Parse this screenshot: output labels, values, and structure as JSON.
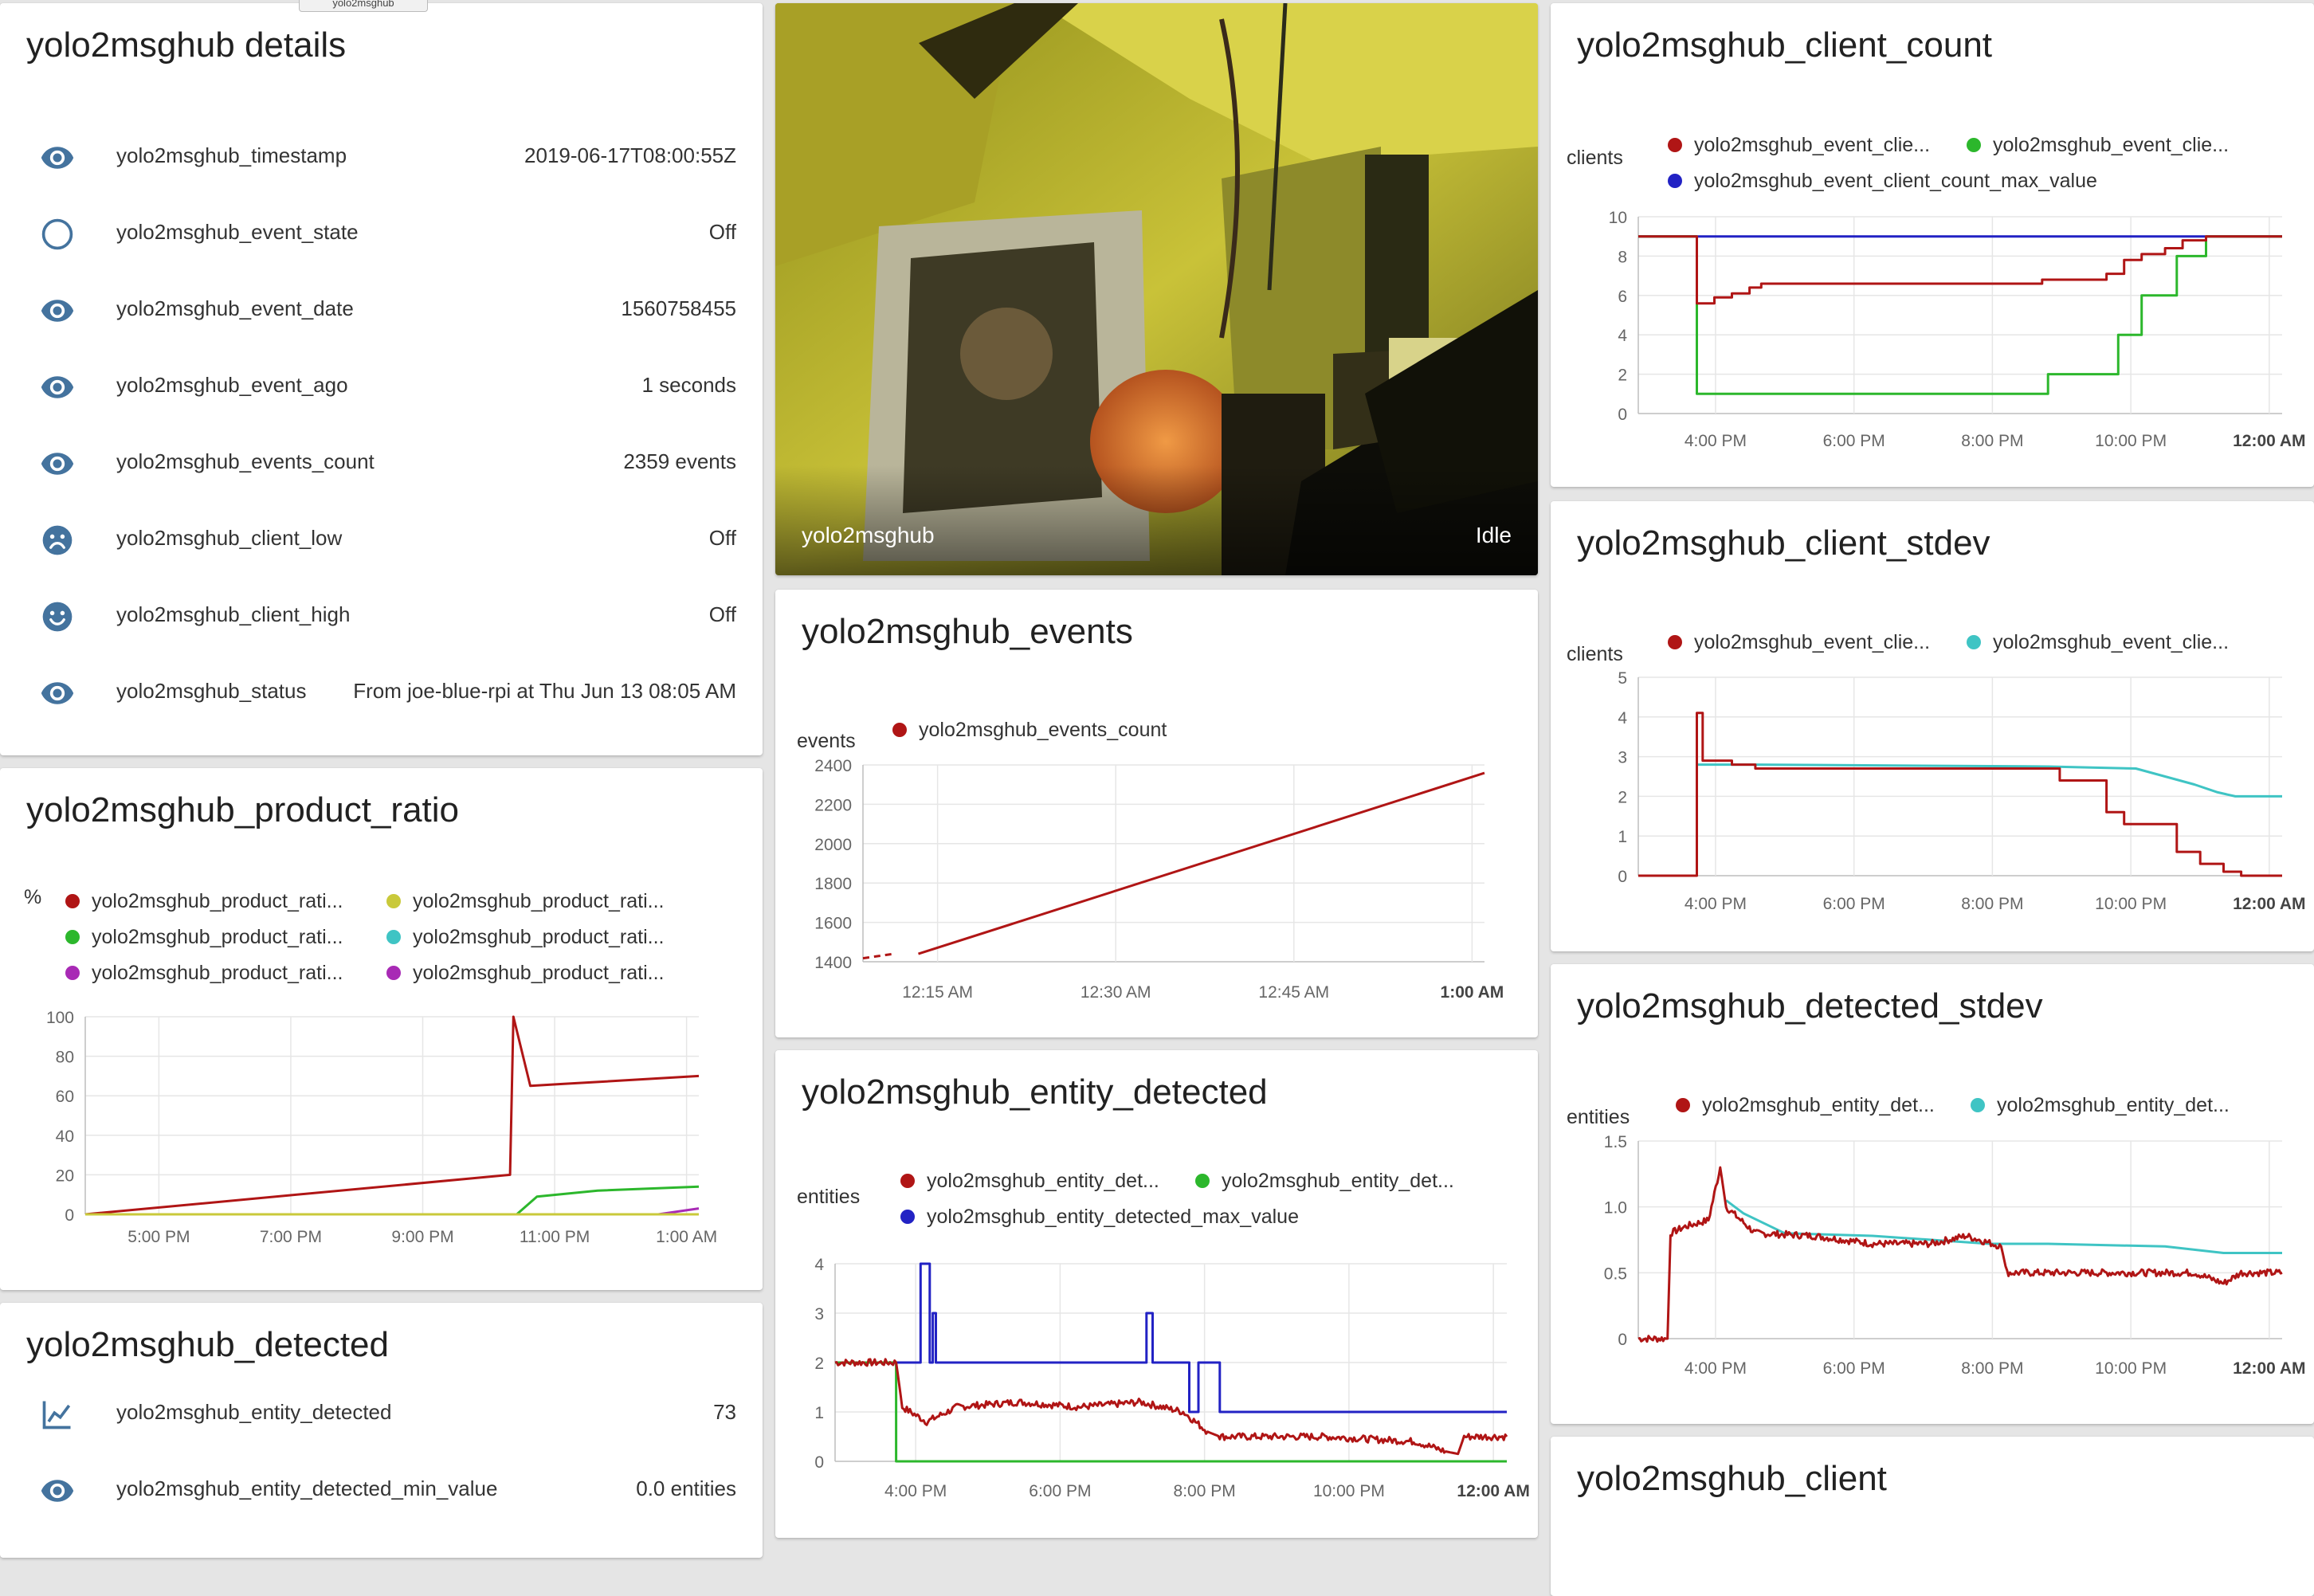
{
  "colors": {
    "red": "#b01515",
    "green": "#2cb72c",
    "blue": "#2222c4",
    "teal": "#3fc4c4",
    "yellow": "#c9c93a",
    "purple": "#a82ab5",
    "icon": "#44739e"
  },
  "tooltip_tag": "yolo2msghub",
  "details": {
    "title": "yolo2msghub details",
    "rows": [
      {
        "icon": "eye-icon",
        "label": "yolo2msghub_timestamp",
        "value": "2019-06-17T08:00:55Z"
      },
      {
        "icon": "circle-outline-icon",
        "label": "yolo2msghub_event_state",
        "value": "Off"
      },
      {
        "icon": "eye-icon",
        "label": "yolo2msghub_event_date",
        "value": "1560758455"
      },
      {
        "icon": "eye-icon",
        "label": "yolo2msghub_event_ago",
        "value": "1 seconds"
      },
      {
        "icon": "eye-icon",
        "label": "yolo2msghub_events_count",
        "value": "2359 events"
      },
      {
        "icon": "sad-face-icon",
        "label": "yolo2msghub_client_low",
        "value": "Off"
      },
      {
        "icon": "happy-face-icon",
        "label": "yolo2msghub_client_high",
        "value": "Off"
      },
      {
        "icon": "eye-icon",
        "label": "yolo2msghub_status",
        "value": "From joe-blue-rpi at Thu Jun 13 08:05 AM"
      }
    ]
  },
  "camera": {
    "name": "yolo2msghub",
    "state": "Idle"
  },
  "detected": {
    "title": "yolo2msghub_detected",
    "rows": [
      {
        "icon": "chart-line-icon",
        "label": "yolo2msghub_entity_detected",
        "value": "73"
      },
      {
        "icon": "eye-icon",
        "label": "yolo2msghub_entity_detected_min_value",
        "value": "0.0 entities"
      }
    ]
  },
  "client_card": {
    "title": "yolo2msghub_client"
  },
  "chart_data": [
    {
      "id": "product_ratio",
      "type": "line",
      "title": "yolo2msghub_product_ratio",
      "ylabel": "%",
      "ylim": [
        0,
        100
      ],
      "yticks": [
        "0",
        "20",
        "40",
        "60",
        "80",
        "100"
      ],
      "xticks": [
        "5:00 PM",
        "7:00 PM",
        "9:00 PM",
        "11:00 PM",
        "1:00 AM"
      ],
      "xlim_hours": [
        15.9,
        25.0
      ],
      "legend": [
        {
          "name": "yolo2msghub_product_rati...",
          "color": "red"
        },
        {
          "name": "yolo2msghub_product_rati...",
          "color": "yellow"
        },
        {
          "name": "yolo2msghub_product_rati...",
          "color": "green"
        },
        {
          "name": "yolo2msghub_product_rati...",
          "color": "teal"
        },
        {
          "name": "yolo2msghub_product_rati...",
          "color": "purple"
        },
        {
          "name": "yolo2msghub_product_rati...",
          "color": "purple"
        }
      ],
      "series": [
        {
          "color": "red",
          "points": [
            [
              15.9,
              0
            ],
            [
              22.2,
              20
            ],
            [
              22.25,
              100
            ],
            [
              22.5,
              65
            ],
            [
              23,
              66
            ],
            [
              25,
              70
            ]
          ]
        },
        {
          "color": "green",
          "points": [
            [
              15.9,
              0
            ],
            [
              22.3,
              0
            ],
            [
              22.6,
              9
            ],
            [
              23.5,
              12
            ],
            [
              25,
              14
            ]
          ]
        },
        {
          "color": "purple",
          "points": [
            [
              15.9,
              0
            ],
            [
              24.4,
              0
            ],
            [
              25,
              3
            ]
          ]
        },
        {
          "color": "yellow",
          "points": [
            [
              15.9,
              0
            ],
            [
              25,
              0
            ]
          ]
        }
      ]
    },
    {
      "id": "events",
      "type": "line",
      "title": "yolo2msghub_events",
      "ylabel": "events",
      "ylim": [
        1400,
        2400
      ],
      "yticks": [
        "1400",
        "1600",
        "1800",
        "2000",
        "2200",
        "2400"
      ],
      "xticks": [
        "12:15 AM",
        "12:30 AM",
        "12:45 AM",
        "1:00 AM"
      ],
      "xticks_bold_last": true,
      "xlim_hours": [
        24.0,
        25.01
      ],
      "legend": [
        {
          "name": "yolo2msghub_events_count",
          "color": "red"
        }
      ],
      "series": [
        {
          "color": "red",
          "points": [
            [
              24.0,
              1418
            ],
            [
              24.05,
              1440
            ]
          ],
          "dashed": true
        },
        {
          "color": "red",
          "points": [
            [
              24.09,
              1440
            ],
            [
              25.01,
              2359
            ]
          ]
        }
      ]
    },
    {
      "id": "entity_detected",
      "type": "line",
      "title": "yolo2msghub_entity_detected",
      "ylabel": "entities",
      "ylim": [
        0,
        4
      ],
      "yticks": [
        "0",
        "1",
        "2",
        "3",
        "4"
      ],
      "xticks": [
        "4:00 PM",
        "6:00 PM",
        "8:00 PM",
        "10:00 PM",
        "12:00 AM"
      ],
      "xticks_bold_last": true,
      "xlim_hours": [
        14.0,
        25.0
      ],
      "legend": [
        {
          "name": "yolo2msghub_entity_det...",
          "color": "red"
        },
        {
          "name": "yolo2msghub_entity_det...",
          "color": "green"
        },
        {
          "name": "yolo2msghub_entity_detected_max_value",
          "color": "blue"
        }
      ],
      "series": [
        {
          "color": "blue",
          "step": true,
          "points": [
            [
              14.0,
              2
            ],
            [
              15.0,
              2
            ],
            [
              15.0,
              2
            ],
            [
              15.4,
              2
            ],
            [
              15.4,
              4
            ],
            [
              15.55,
              4
            ],
            [
              15.55,
              2
            ],
            [
              15.6,
              2
            ],
            [
              15.6,
              3
            ],
            [
              15.65,
              3
            ],
            [
              15.65,
              2
            ],
            [
              19.1,
              2
            ],
            [
              19.1,
              3
            ],
            [
              19.2,
              3
            ],
            [
              19.2,
              2
            ],
            [
              19.8,
              2
            ],
            [
              19.8,
              1
            ],
            [
              19.95,
              1
            ],
            [
              19.95,
              2
            ],
            [
              20.3,
              2
            ],
            [
              20.3,
              1
            ],
            [
              25.0,
              1
            ]
          ]
        },
        {
          "color": "green",
          "step": true,
          "points": [
            [
              14.0,
              2
            ],
            [
              15.0,
              2
            ],
            [
              15.0,
              0
            ],
            [
              25.0,
              0
            ]
          ]
        },
        {
          "color": "red",
          "noisy": true,
          "points": [
            [
              14.0,
              2
            ],
            [
              15.0,
              2
            ],
            [
              15.1,
              1.1
            ],
            [
              15.5,
              0.8
            ],
            [
              16,
              1.1
            ],
            [
              17,
              1.2
            ],
            [
              18,
              1.1
            ],
            [
              19,
              1.2
            ],
            [
              19.7,
              1.0
            ],
            [
              20.1,
              0.6
            ],
            [
              20.3,
              0.5
            ],
            [
              22,
              0.5
            ],
            [
              23.5,
              0.4
            ],
            [
              24.0,
              0.2
            ],
            [
              24.2,
              0.15
            ],
            [
              24.3,
              0.5
            ],
            [
              25.0,
              0.5
            ]
          ]
        }
      ]
    },
    {
      "id": "client_count",
      "type": "line",
      "title": "yolo2msghub_client_count",
      "ylabel": "clients",
      "ylim": [
        0,
        10
      ],
      "yticks": [
        "0",
        "2",
        "4",
        "6",
        "8",
        "10"
      ],
      "xticks": [
        "4:00 PM",
        "6:00 PM",
        "8:00 PM",
        "10:00 PM",
        "12:00 AM"
      ],
      "xticks_bold_last": true,
      "xlim_hours": [
        14.0,
        25.0
      ],
      "legend": [
        {
          "name": "yolo2msghub_event_clie...",
          "color": "red"
        },
        {
          "name": "yolo2msghub_event_clie...",
          "color": "green"
        },
        {
          "name": "yolo2msghub_event_client_count_max_value",
          "color": "blue"
        }
      ],
      "series": [
        {
          "color": "blue",
          "points": [
            [
              14.0,
              9
            ],
            [
              25.0,
              9
            ]
          ]
        },
        {
          "color": "green",
          "step": true,
          "points": [
            [
              14.0,
              9
            ],
            [
              15.0,
              9
            ],
            [
              15.0,
              1
            ],
            [
              21.0,
              1
            ],
            [
              21.0,
              2
            ],
            [
              22.2,
              2
            ],
            [
              22.2,
              4
            ],
            [
              22.6,
              4
            ],
            [
              22.6,
              6
            ],
            [
              23.2,
              6
            ],
            [
              23.2,
              8
            ],
            [
              23.7,
              8
            ],
            [
              23.7,
              9
            ],
            [
              25.0,
              9
            ]
          ]
        },
        {
          "color": "red",
          "step": true,
          "points": [
            [
              14.0,
              9
            ],
            [
              15.0,
              9
            ],
            [
              15.0,
              5.6
            ],
            [
              15.3,
              5.6
            ],
            [
              15.3,
              5.9
            ],
            [
              15.6,
              5.9
            ],
            [
              15.6,
              6.1
            ],
            [
              15.9,
              6.1
            ],
            [
              15.9,
              6.4
            ],
            [
              16.1,
              6.4
            ],
            [
              16.1,
              6.6
            ],
            [
              20.9,
              6.6
            ],
            [
              20.9,
              6.8
            ],
            [
              22.0,
              6.8
            ],
            [
              22.0,
              7.1
            ],
            [
              22.3,
              7.1
            ],
            [
              22.3,
              7.8
            ],
            [
              22.6,
              7.8
            ],
            [
              22.6,
              8.1
            ],
            [
              23.0,
              8.1
            ],
            [
              23.0,
              8.4
            ],
            [
              23.3,
              8.4
            ],
            [
              23.3,
              8.8
            ],
            [
              23.7,
              8.8
            ],
            [
              23.7,
              9
            ],
            [
              25.0,
              9
            ]
          ]
        }
      ]
    },
    {
      "id": "client_stdev",
      "type": "line",
      "title": "yolo2msghub_client_stdev",
      "ylabel": "clients",
      "ylim": [
        0,
        5
      ],
      "yticks": [
        "0",
        "1",
        "2",
        "3",
        "4",
        "5"
      ],
      "xticks": [
        "4:00 PM",
        "6:00 PM",
        "8:00 PM",
        "10:00 PM",
        "12:00 AM"
      ],
      "xticks_bold_last": true,
      "xlim_hours": [
        14.0,
        25.0
      ],
      "legend": [
        {
          "name": "yolo2msghub_event_clie...",
          "color": "red"
        },
        {
          "name": "yolo2msghub_event_clie...",
          "color": "teal"
        }
      ],
      "series": [
        {
          "color": "teal",
          "points": [
            [
              15.0,
              2.8
            ],
            [
              16,
              2.8
            ],
            [
              21,
              2.75
            ],
            [
              22.5,
              2.7
            ],
            [
              23,
              2.5
            ],
            [
              23.5,
              2.3
            ],
            [
              23.9,
              2.1
            ],
            [
              24.2,
              2.0
            ],
            [
              25.0,
              2.0
            ]
          ]
        },
        {
          "color": "red",
          "step": true,
          "points": [
            [
              14.0,
              0
            ],
            [
              15.0,
              0
            ],
            [
              15.0,
              4.1
            ],
            [
              15.1,
              4.1
            ],
            [
              15.1,
              2.9
            ],
            [
              15.6,
              2.9
            ],
            [
              15.6,
              2.8
            ],
            [
              16,
              2.8
            ],
            [
              16,
              2.7
            ],
            [
              21.2,
              2.7
            ],
            [
              21.2,
              2.4
            ],
            [
              22.0,
              2.4
            ],
            [
              22.0,
              1.6
            ],
            [
              22.3,
              1.6
            ],
            [
              22.3,
              1.3
            ],
            [
              23.2,
              1.3
            ],
            [
              23.2,
              0.6
            ],
            [
              23.6,
              0.6
            ],
            [
              23.6,
              0.3
            ],
            [
              24.0,
              0.3
            ],
            [
              24.0,
              0.1
            ],
            [
              24.3,
              0.1
            ],
            [
              24.3,
              0
            ],
            [
              25.0,
              0
            ]
          ]
        }
      ]
    },
    {
      "id": "detected_stdev",
      "type": "line",
      "title": "yolo2msghub_detected_stdev",
      "ylabel": "entities",
      "ylim": [
        0,
        1.5
      ],
      "yticks": [
        "0",
        "0.5",
        "1.0",
        "1.5"
      ],
      "xticks": [
        "4:00 PM",
        "6:00 PM",
        "8:00 PM",
        "10:00 PM",
        "12:00 AM"
      ],
      "xticks_bold_last": true,
      "xlim_hours": [
        14.0,
        25.0
      ],
      "legend": [
        {
          "name": "yolo2msghub_entity_det...",
          "color": "red"
        },
        {
          "name": "yolo2msghub_entity_det...",
          "color": "teal"
        }
      ],
      "series": [
        {
          "color": "teal",
          "points": [
            [
              15.5,
              1.05
            ],
            [
              15.8,
              0.95
            ],
            [
              16.5,
              0.8
            ],
            [
              18,
              0.78
            ],
            [
              20,
              0.72
            ],
            [
              21,
              0.72
            ],
            [
              23,
              0.7
            ],
            [
              24,
              0.65
            ],
            [
              25.0,
              0.65
            ]
          ]
        },
        {
          "color": "red",
          "noisy": true,
          "points": [
            [
              14.0,
              0
            ],
            [
              14.5,
              0
            ],
            [
              14.55,
              0.8
            ],
            [
              14.8,
              0.85
            ],
            [
              15.2,
              0.9
            ],
            [
              15.4,
              1.3
            ],
            [
              15.5,
              1.0
            ],
            [
              16,
              0.8
            ],
            [
              17,
              0.78
            ],
            [
              18,
              0.72
            ],
            [
              19,
              0.72
            ],
            [
              19.6,
              0.78
            ],
            [
              20.2,
              0.7
            ],
            [
              20.3,
              0.5
            ],
            [
              22,
              0.5
            ],
            [
              23.5,
              0.5
            ],
            [
              24.0,
              0.42
            ],
            [
              24.3,
              0.5
            ],
            [
              25.0,
              0.5
            ]
          ]
        }
      ]
    }
  ]
}
